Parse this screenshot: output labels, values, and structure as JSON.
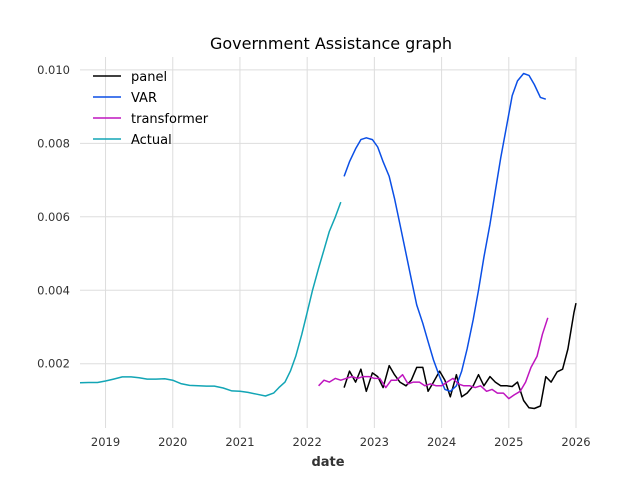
{
  "chart_data": {
    "type": "line",
    "title": "Government Assistance graph",
    "xlabel": "date",
    "ylabel": "",
    "xlim": [
      2018.62,
      2026.0
    ],
    "ylim": [
      0.00025,
      0.01035
    ],
    "x_ticks": [
      2019,
      2020,
      2021,
      2022,
      2023,
      2024,
      2025,
      2026
    ],
    "x_tick_labels": [
      "2019",
      "2020",
      "2021",
      "2022",
      "2023",
      "2024",
      "2025",
      "2026"
    ],
    "y_ticks": [
      0.002,
      0.004,
      0.006,
      0.008,
      0.01
    ],
    "y_tick_labels": [
      "0.002",
      "0.004",
      "0.006",
      "0.008",
      "0.010"
    ],
    "grid": true,
    "legend_position": "top-left",
    "series": [
      {
        "name": "panel",
        "color": "#000000",
        "x": [
          2022.55,
          2022.63,
          2022.72,
          2022.8,
          2022.88,
          2022.97,
          2023.05,
          2023.13,
          2023.22,
          2023.3,
          2023.38,
          2023.47,
          2023.55,
          2023.63,
          2023.72,
          2023.8,
          2023.88,
          2023.97,
          2024.05,
          2024.13,
          2024.22,
          2024.3,
          2024.38,
          2024.47,
          2024.55,
          2024.63,
          2024.72,
          2024.8,
          2024.88,
          2024.97,
          2025.05,
          2025.13,
          2025.22,
          2025.3,
          2025.38,
          2025.47,
          2025.55,
          2025.63,
          2025.72,
          2025.8,
          2025.88,
          2025.97,
          2026.0
        ],
        "values": [
          0.00135,
          0.0018,
          0.0015,
          0.00185,
          0.00125,
          0.00175,
          0.00165,
          0.00135,
          0.00195,
          0.0017,
          0.0015,
          0.0014,
          0.00155,
          0.0019,
          0.0019,
          0.00125,
          0.0015,
          0.0018,
          0.00155,
          0.0011,
          0.0017,
          0.0011,
          0.0012,
          0.0014,
          0.0017,
          0.0014,
          0.00165,
          0.0015,
          0.0014,
          0.0014,
          0.00138,
          0.0015,
          0.001,
          0.0008,
          0.00078,
          0.00085,
          0.00165,
          0.0015,
          0.00178,
          0.00185,
          0.0024,
          0.0034,
          0.00365
        ]
      },
      {
        "name": "VAR",
        "color": "#0b4fe6",
        "x": [
          2022.55,
          2022.63,
          2022.72,
          2022.8,
          2022.88,
          2022.97,
          2023.05,
          2023.13,
          2023.22,
          2023.3,
          2023.38,
          2023.47,
          2023.55,
          2023.63,
          2023.72,
          2023.8,
          2023.88,
          2023.97,
          2024.05,
          2024.13,
          2024.22,
          2024.3,
          2024.38,
          2024.47,
          2024.55,
          2024.63,
          2024.72,
          2024.8,
          2024.88,
          2024.97,
          2025.05,
          2025.13,
          2025.22,
          2025.3,
          2025.38,
          2025.47,
          2025.55
        ],
        "values": [
          0.0071,
          0.0075,
          0.00785,
          0.0081,
          0.00815,
          0.0081,
          0.0079,
          0.0075,
          0.0071,
          0.0065,
          0.0058,
          0.005,
          0.0043,
          0.0036,
          0.0031,
          0.0026,
          0.0021,
          0.00165,
          0.0013,
          0.00125,
          0.0014,
          0.0018,
          0.0024,
          0.0032,
          0.004,
          0.0049,
          0.0058,
          0.0067,
          0.0076,
          0.0085,
          0.0093,
          0.0097,
          0.0099,
          0.00985,
          0.0096,
          0.00925,
          0.0092
        ]
      },
      {
        "name": "transformer",
        "color": "#bf16bf",
        "x": [
          2022.17,
          2022.25,
          2022.33,
          2022.42,
          2022.5,
          2022.58,
          2022.67,
          2022.75,
          2022.83,
          2022.92,
          2023.0,
          2023.08,
          2023.17,
          2023.25,
          2023.33,
          2023.42,
          2023.5,
          2023.58,
          2023.67,
          2023.75,
          2023.83,
          2023.92,
          2024.0,
          2024.08,
          2024.17,
          2024.25,
          2024.33,
          2024.42,
          2024.5,
          2024.58,
          2024.67,
          2024.75,
          2024.83,
          2024.92,
          2025.0,
          2025.08,
          2025.17,
          2025.25,
          2025.33,
          2025.42,
          2025.5,
          2025.58
        ],
        "values": [
          0.0014,
          0.00155,
          0.0015,
          0.0016,
          0.00155,
          0.0016,
          0.00165,
          0.0016,
          0.00165,
          0.00165,
          0.0016,
          0.0016,
          0.00135,
          0.00155,
          0.00155,
          0.0017,
          0.00145,
          0.0015,
          0.0015,
          0.0014,
          0.00145,
          0.0014,
          0.0014,
          0.0015,
          0.0016,
          0.00145,
          0.0014,
          0.0014,
          0.00135,
          0.0014,
          0.00125,
          0.0013,
          0.0012,
          0.0012,
          0.00105,
          0.00115,
          0.00125,
          0.0015,
          0.0019,
          0.0022,
          0.0028,
          0.00325
        ]
      },
      {
        "name": "Actual",
        "color": "#12a5b5",
        "x": [
          2018.62,
          2018.75,
          2018.88,
          2019.0,
          2019.12,
          2019.25,
          2019.38,
          2019.5,
          2019.62,
          2019.75,
          2019.88,
          2020.0,
          2020.12,
          2020.25,
          2020.38,
          2020.5,
          2020.62,
          2020.75,
          2020.88,
          2021.0,
          2021.12,
          2021.25,
          2021.38,
          2021.5,
          2021.58,
          2021.67,
          2021.75,
          2021.83,
          2021.92,
          2022.0,
          2022.08,
          2022.17,
          2022.25,
          2022.33,
          2022.42,
          2022.5
        ],
        "values": [
          0.00148,
          0.00149,
          0.00149,
          0.00153,
          0.00158,
          0.00164,
          0.00164,
          0.00162,
          0.00158,
          0.00158,
          0.00159,
          0.00155,
          0.00146,
          0.00141,
          0.0014,
          0.00139,
          0.00139,
          0.00134,
          0.00126,
          0.00125,
          0.00122,
          0.00117,
          0.00112,
          0.0012,
          0.00135,
          0.0015,
          0.0018,
          0.0022,
          0.0028,
          0.0034,
          0.004,
          0.0046,
          0.0051,
          0.0056,
          0.006,
          0.0064
        ]
      }
    ]
  }
}
